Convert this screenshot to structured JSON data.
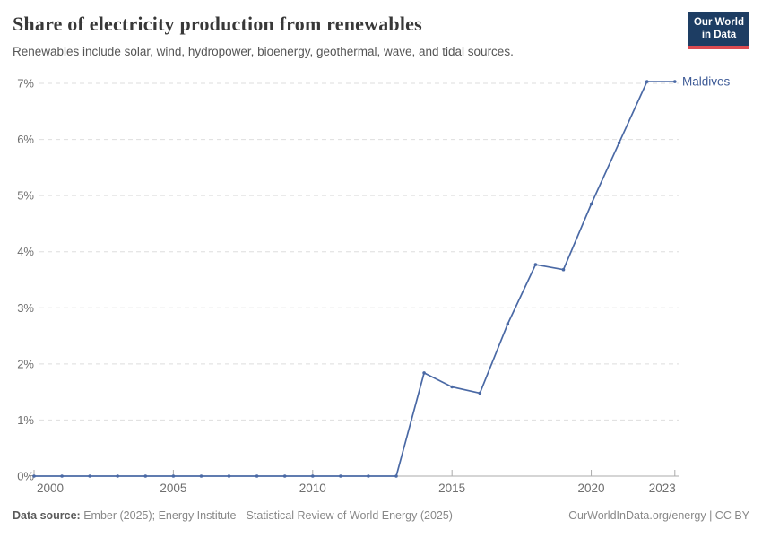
{
  "header": {
    "title": "Share of electricity production from renewables",
    "subtitle": "Renewables include solar, wind, hydropower, bioenergy, geothermal, wave, and tidal sources.",
    "logo": {
      "line1": "Our World",
      "line2": "in Data",
      "bg_color": "#1d3d63",
      "accent_color": "#dc4b51"
    }
  },
  "chart_data": {
    "type": "line",
    "title": "Share of electricity production from renewables",
    "xlabel": "",
    "ylabel": "",
    "xlim": [
      2000,
      2023
    ],
    "ylim": [
      0,
      7
    ],
    "grid": "horizontal-dashed",
    "legend_position": "end-of-line-label",
    "x": [
      2000,
      2001,
      2002,
      2003,
      2004,
      2005,
      2006,
      2007,
      2008,
      2009,
      2010,
      2011,
      2012,
      2013,
      2014,
      2015,
      2016,
      2017,
      2018,
      2019,
      2020,
      2021,
      2022,
      2023
    ],
    "series": [
      {
        "name": "Maldives",
        "color": "#4a69a5",
        "label_color": "#3d5a96",
        "values": [
          0,
          0,
          0,
          0,
          0,
          0,
          0,
          0,
          0,
          0,
          0,
          0,
          0,
          0,
          1.84,
          1.59,
          1.48,
          2.71,
          3.77,
          3.68,
          4.85,
          5.94,
          7.03,
          7.03
        ]
      }
    ],
    "x_ticks": [
      2000,
      2005,
      2010,
      2015,
      2020,
      2023
    ],
    "y_ticks": [
      "0%",
      "1%",
      "2%",
      "3%",
      "4%",
      "5%",
      "6%",
      "7%"
    ]
  },
  "theme": {
    "grid_color": "#dedede",
    "axis_color": "#ababab",
    "tick_text_color": "#6e6e6e"
  },
  "footer": {
    "source_label": "Data source:",
    "source_text": "Ember (2025); Energy Institute - Statistical Review of World Energy (2025)",
    "credit": "OurWorldInData.org/energy | CC BY"
  }
}
